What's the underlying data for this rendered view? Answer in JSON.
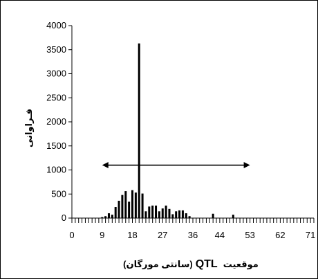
{
  "chart_data": {
    "type": "bar",
    "x_tick_labels": [
      "0",
      "9",
      "18",
      "27",
      "36",
      "44",
      "53",
      "62",
      "71"
    ],
    "x_tick_positions": [
      0,
      9,
      18,
      27,
      36,
      44,
      53,
      62,
      71
    ],
    "xlim": [
      0,
      72
    ],
    "ylim": [
      0,
      4000
    ],
    "y_ticks": [
      0,
      500,
      1000,
      1500,
      2000,
      2500,
      3000,
      3500,
      4000
    ],
    "xlabel_prefix": "موقعیت",
    "xlabel_code": "QTL",
    "xlabel_unit": "(سانتی مورگان)",
    "ylabel": "فـراوانی",
    "grid": false,
    "bars": [
      {
        "x": 9,
        "y": 20
      },
      {
        "x": 10,
        "y": 40
      },
      {
        "x": 11,
        "y": 100
      },
      {
        "x": 12,
        "y": 70
      },
      {
        "x": 13,
        "y": 230
      },
      {
        "x": 14,
        "y": 360
      },
      {
        "x": 15,
        "y": 480
      },
      {
        "x": 16,
        "y": 560
      },
      {
        "x": 17,
        "y": 340
      },
      {
        "x": 18,
        "y": 580
      },
      {
        "x": 19,
        "y": 530
      },
      {
        "x": 20,
        "y": 3630
      },
      {
        "x": 21,
        "y": 510
      },
      {
        "x": 22,
        "y": 140
      },
      {
        "x": 23,
        "y": 240
      },
      {
        "x": 24,
        "y": 260
      },
      {
        "x": 25,
        "y": 260
      },
      {
        "x": 26,
        "y": 140
      },
      {
        "x": 27,
        "y": 200
      },
      {
        "x": 28,
        "y": 260
      },
      {
        "x": 29,
        "y": 190
      },
      {
        "x": 30,
        "y": 80
      },
      {
        "x": 31,
        "y": 140
      },
      {
        "x": 32,
        "y": 160
      },
      {
        "x": 33,
        "y": 160
      },
      {
        "x": 34,
        "y": 100
      },
      {
        "x": 35,
        "y": 40
      },
      {
        "x": 42,
        "y": 90
      },
      {
        "x": 48,
        "y": 70
      }
    ],
    "annotation": {
      "type": "double-arrow",
      "x_start": 9,
      "x_end": 53,
      "y": 1100
    },
    "bar_color": "#000000"
  }
}
